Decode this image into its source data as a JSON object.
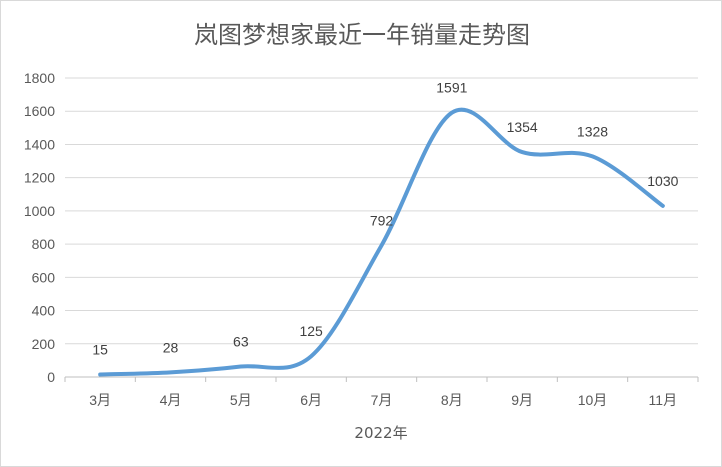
{
  "chart_data": {
    "type": "line",
    "title": "岚图梦想家最近一年销量走势图",
    "xlabel": "2022年",
    "ylabel": "",
    "categories": [
      "3月",
      "4月",
      "5月",
      "6月",
      "7月",
      "8月",
      "9月",
      "10月",
      "11月"
    ],
    "series": [
      {
        "values": [
          15,
          28,
          63,
          125,
          792,
          1591,
          1354,
          1328,
          1030
        ],
        "color": "#5b9bd5"
      }
    ],
    "ylim": [
      0,
      1800
    ],
    "yticks": [
      "0",
      "200",
      "400",
      "600",
      "800",
      "1000",
      "1200",
      "1400",
      "1600",
      "1800"
    ],
    "data_labels": [
      "15",
      "28",
      "63",
      "125",
      "792",
      "1591",
      "1354",
      "1328",
      "1030"
    ],
    "grid": true,
    "smooth": true,
    "legend": "none"
  }
}
